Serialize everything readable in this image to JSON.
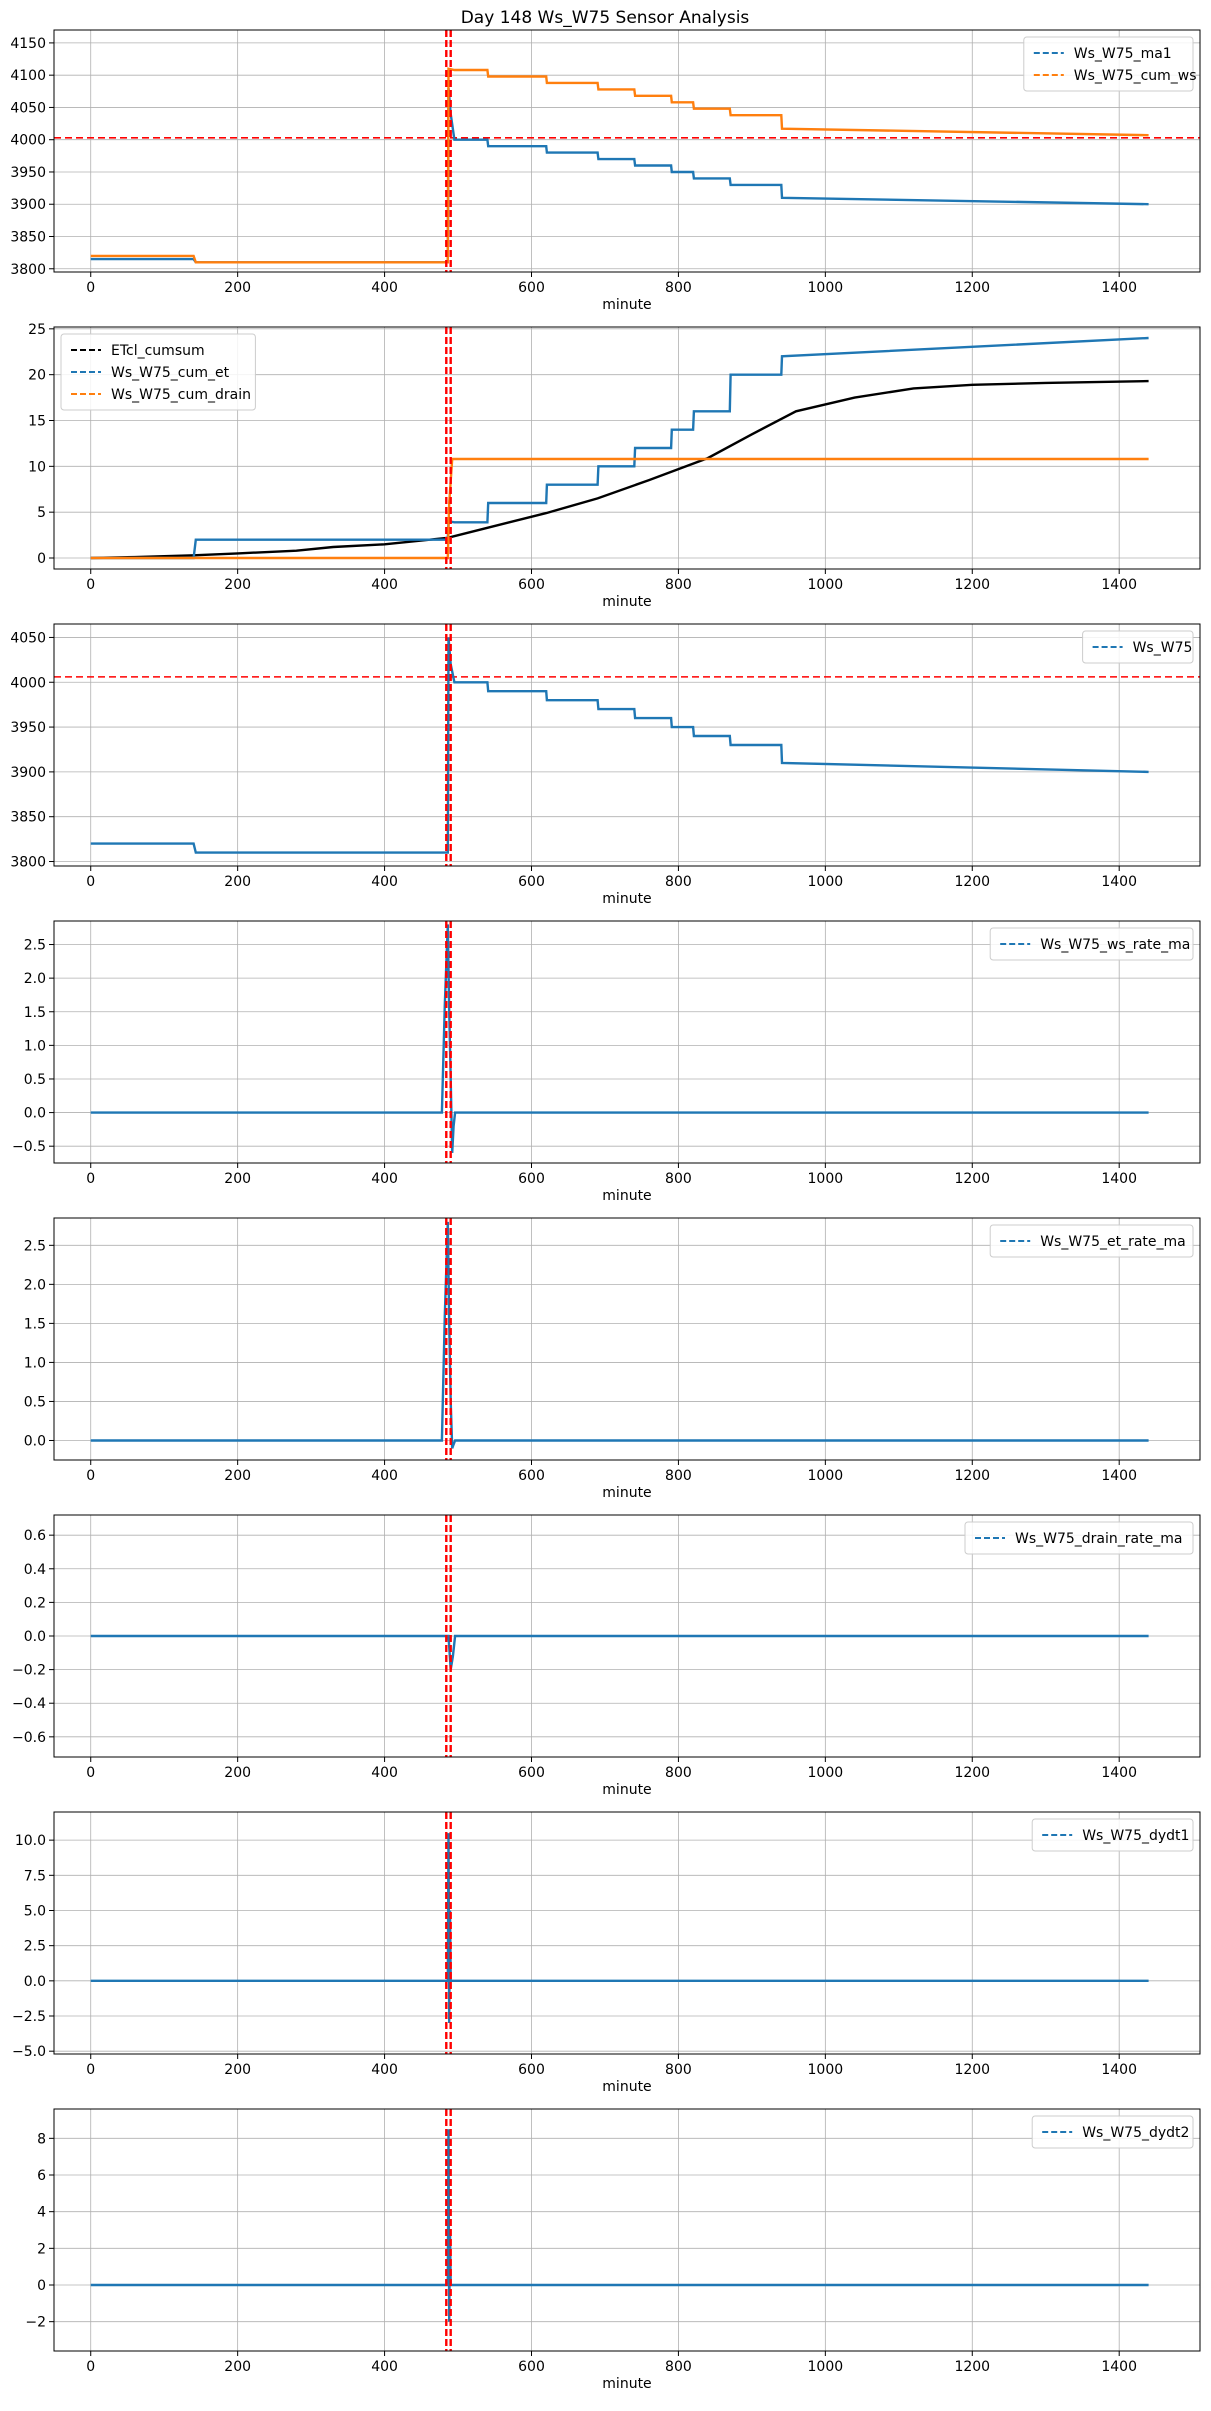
{
  "title": "Day 148 Ws_W75 Sensor Analysis",
  "colors": {
    "blue": "#1f77b4",
    "orange": "#ff7f0e",
    "black": "#000000",
    "red": "#ff0000",
    "grid": "#b0b0b0"
  },
  "chart_data": [
    {
      "type": "line",
      "xlabel": "minute",
      "xlim": [
        -50,
        1510
      ],
      "ylim": [
        3795,
        4170
      ],
      "xticks": [
        0,
        200,
        400,
        600,
        800,
        1000,
        1200,
        1400
      ],
      "yticks": [
        3800,
        3850,
        3900,
        3950,
        4000,
        4050,
        4100,
        4150
      ],
      "legend_position": "top-right",
      "vlines": [
        484,
        490
      ],
      "hline": 4003,
      "series": [
        {
          "name": "Ws_W75_ma1",
          "color": "#1f77b4",
          "x": [
            0,
            140,
            143,
            486,
            487,
            490,
            495,
            540,
            541,
            620,
            621,
            690,
            691,
            740,
            741,
            790,
            791,
            820,
            821,
            870,
            871,
            940,
            941,
            1440
          ],
          "y": [
            3815,
            3815,
            3810,
            3810,
            4080,
            4040,
            4000,
            4000,
            3990,
            3990,
            3980,
            3980,
            3970,
            3970,
            3960,
            3960,
            3950,
            3950,
            3940,
            3940,
            3930,
            3930,
            3910,
            3900
          ]
        },
        {
          "name": "Ws_W75_cum_ws",
          "color": "#ff7f0e",
          "x": [
            0,
            140,
            143,
            486,
            487,
            495,
            540,
            541,
            620,
            621,
            690,
            691,
            740,
            741,
            790,
            791,
            820,
            821,
            870,
            871,
            940,
            941,
            1440
          ],
          "y": [
            3820,
            3820,
            3810,
            3810,
            4110,
            4108,
            4108,
            4098,
            4098,
            4088,
            4088,
            4078,
            4078,
            4068,
            4068,
            4058,
            4058,
            4048,
            4048,
            4038,
            4038,
            4017,
            4007
          ]
        }
      ]
    },
    {
      "type": "line",
      "xlabel": "minute",
      "xlim": [
        -50,
        1510
      ],
      "ylim": [
        -1.2,
        25.2
      ],
      "xticks": [
        0,
        200,
        400,
        600,
        800,
        1000,
        1200,
        1400
      ],
      "yticks": [
        0,
        5,
        10,
        15,
        20,
        25
      ],
      "legend_position": "top-left",
      "vlines": [
        484,
        490
      ],
      "series": [
        {
          "name": "ETcl_cumsum",
          "color": "#000000",
          "x": [
            0,
            60,
            140,
            200,
            280,
            330,
            400,
            486,
            540,
            620,
            690,
            760,
            840,
            900,
            960,
            1040,
            1120,
            1200,
            1300,
            1440
          ],
          "y": [
            0,
            0.1,
            0.3,
            0.5,
            0.8,
            1.2,
            1.5,
            2.2,
            3.3,
            4.9,
            6.5,
            8.5,
            10.9,
            13.5,
            16,
            17.5,
            18.5,
            18.9,
            19.1,
            19.3
          ]
        },
        {
          "name": "Ws_W75_cum_et",
          "color": "#1f77b4",
          "x": [
            0,
            140,
            143,
            486,
            487,
            495,
            540,
            541,
            620,
            621,
            690,
            691,
            740,
            741,
            790,
            791,
            820,
            821,
            870,
            871,
            940,
            941,
            1440
          ],
          "y": [
            0,
            0,
            2,
            2,
            4,
            3.9,
            3.9,
            6,
            6,
            8,
            8,
            10,
            10,
            12,
            12,
            14,
            14,
            16,
            16,
            20,
            20,
            22,
            24
          ]
        },
        {
          "name": "Ws_W75_cum_drain",
          "color": "#ff7f0e",
          "x": [
            0,
            486,
            488,
            492,
            1440
          ],
          "y": [
            0,
            0,
            6,
            10.8,
            10.8
          ]
        }
      ]
    },
    {
      "type": "line",
      "xlabel": "minute",
      "xlim": [
        -50,
        1510
      ],
      "ylim": [
        3795,
        4065
      ],
      "xticks": [
        0,
        200,
        400,
        600,
        800,
        1000,
        1200,
        1400
      ],
      "yticks": [
        3800,
        3850,
        3900,
        3950,
        4000,
        4050
      ],
      "legend_position": "top-right",
      "vlines": [
        484,
        490
      ],
      "hline": 4006,
      "series": [
        {
          "name": "Ws_W75",
          "color": "#1f77b4",
          "x": [
            0,
            140,
            143,
            486,
            487,
            490,
            495,
            540,
            541,
            620,
            621,
            690,
            691,
            740,
            741,
            790,
            791,
            820,
            821,
            870,
            871,
            940,
            941,
            1440
          ],
          "y": [
            3820,
            3820,
            3810,
            3810,
            4050,
            4020,
            4000,
            4000,
            3990,
            3990,
            3980,
            3980,
            3970,
            3970,
            3960,
            3960,
            3950,
            3950,
            3940,
            3940,
            3930,
            3930,
            3910,
            3900
          ]
        }
      ]
    },
    {
      "type": "line",
      "xlabel": "minute",
      "xlim": [
        -50,
        1510
      ],
      "ylim": [
        -0.75,
        2.85
      ],
      "xticks": [
        0,
        200,
        400,
        600,
        800,
        1000,
        1200,
        1400
      ],
      "yticks": [
        -0.5,
        0.0,
        0.5,
        1.0,
        1.5,
        2.0,
        2.5
      ],
      "legend_position": "top-right",
      "vlines": [
        484,
        490
      ],
      "series": [
        {
          "name": "Ws_W75_ws_rate_ma",
          "color": "#1f77b4",
          "x": [
            0,
            478,
            482,
            486,
            488,
            490,
            492,
            494,
            496,
            1440
          ],
          "y": [
            0,
            0,
            1.6,
            2.8,
            1.5,
            0.5,
            -0.6,
            -0.2,
            0,
            0
          ]
        }
      ]
    },
    {
      "type": "line",
      "xlabel": "minute",
      "xlim": [
        -50,
        1510
      ],
      "ylim": [
        -0.25,
        2.85
      ],
      "xticks": [
        0,
        200,
        400,
        600,
        800,
        1000,
        1200,
        1400
      ],
      "yticks": [
        0.0,
        0.5,
        1.0,
        1.5,
        2.0,
        2.5
      ],
      "legend_position": "top-right",
      "vlines": [
        484,
        490
      ],
      "series": [
        {
          "name": "Ws_W75_et_rate_ma",
          "color": "#1f77b4",
          "x": [
            0,
            478,
            482,
            486,
            488,
            490,
            492,
            494,
            496,
            1440
          ],
          "y": [
            0,
            0,
            1.6,
            2.8,
            1.5,
            0.5,
            -0.1,
            -0.05,
            0,
            0
          ]
        }
      ]
    },
    {
      "type": "line",
      "xlabel": "minute",
      "xlim": [
        -50,
        1510
      ],
      "ylim": [
        -0.72,
        0.72
      ],
      "xticks": [
        0,
        200,
        400,
        600,
        800,
        1000,
        1200,
        1400
      ],
      "yticks": [
        -0.6,
        -0.4,
        -0.2,
        0.0,
        0.2,
        0.4,
        0.6
      ],
      "legend_position": "top-right",
      "vlines": [
        484,
        490
      ],
      "series": [
        {
          "name": "Ws_W75_drain_rate_ma",
          "color": "#1f77b4",
          "x": [
            0,
            487,
            490,
            493,
            496,
            1440
          ],
          "y": [
            0,
            0,
            -0.2,
            -0.12,
            0,
            0
          ]
        }
      ]
    },
    {
      "type": "line",
      "xlabel": "minute",
      "xlim": [
        -50,
        1510
      ],
      "ylim": [
        -5.2,
        12.0
      ],
      "xticks": [
        0,
        200,
        400,
        600,
        800,
        1000,
        1200,
        1400
      ],
      "yticks": [
        -5.0,
        -2.5,
        0.0,
        2.5,
        5.0,
        7.5,
        10.0
      ],
      "legend_position": "top-right",
      "vlines": [
        484,
        490
      ],
      "series": [
        {
          "name": "Ws_W75_dydt1",
          "color": "#1f77b4",
          "x": [
            0,
            486,
            487,
            488,
            489,
            490,
            1440
          ],
          "y": [
            0,
            0,
            10.5,
            -3,
            5,
            0,
            0
          ]
        }
      ]
    },
    {
      "type": "line",
      "xlabel": "minute",
      "xlim": [
        -50,
        1510
      ],
      "ylim": [
        -3.6,
        9.6
      ],
      "xticks": [
        0,
        200,
        400,
        600,
        800,
        1000,
        1200,
        1400
      ],
      "yticks": [
        -2,
        0,
        2,
        4,
        6,
        8
      ],
      "legend_position": "top-right",
      "vlines": [
        484,
        490
      ],
      "series": [
        {
          "name": "Ws_W75_dydt2",
          "color": "#1f77b4",
          "x": [
            0,
            486,
            487,
            488,
            489,
            490,
            1440
          ],
          "y": [
            0,
            0,
            8.5,
            -2,
            3,
            0,
            0
          ]
        }
      ]
    }
  ]
}
